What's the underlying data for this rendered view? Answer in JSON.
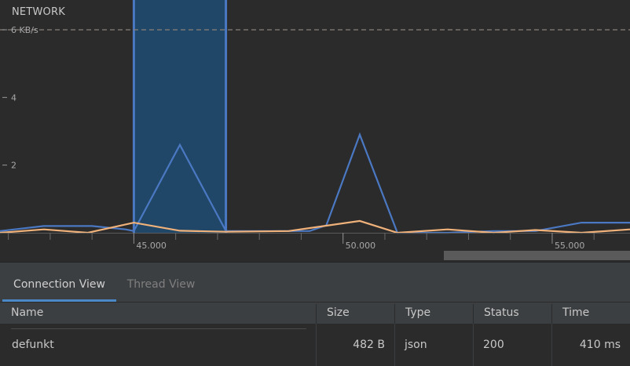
{
  "network": {
    "title": "NETWORK",
    "unit_label": "6 KB/s"
  },
  "chart_data": {
    "type": "line",
    "title": "NETWORK",
    "ylim": [
      0,
      6
    ],
    "y_ticks": [
      {
        "value": 2,
        "label": "2"
      },
      {
        "value": 4,
        "label": "4"
      },
      {
        "value": 6,
        "label": "6 KB/s"
      }
    ],
    "x_ticks": [
      {
        "value": 45,
        "label": "45.000"
      },
      {
        "value": 50,
        "label": "50.000"
      },
      {
        "value": 55,
        "label": "55.000"
      }
    ],
    "xlim": [
      41.8,
      56.86
    ],
    "threshold": 6,
    "selection": [
      45,
      47.2
    ],
    "series": [
      {
        "color": "#4a78c2",
        "x": [
          41.8,
          42.85,
          44.0,
          44.8,
          45.0,
          46.1,
          47.2,
          48.5,
          49.2,
          49.6,
          50.4,
          51.3,
          52.5,
          53.6,
          54.6,
          55.7,
          56.86
        ],
        "y": [
          0.05,
          0.2,
          0.2,
          0.1,
          0.05,
          2.6,
          0.05,
          0.05,
          0.05,
          0.22,
          2.9,
          0.0,
          0.0,
          0.05,
          0.05,
          0.3,
          0.3
        ]
      },
      {
        "color": "#f0b27a",
        "x": [
          41.8,
          42.85,
          43.9,
          45.0,
          46.1,
          47.2,
          48.7,
          50.4,
          51.3,
          52.5,
          53.6,
          54.6,
          55.7,
          56.86
        ],
        "y": [
          0.0,
          0.1,
          0.0,
          0.3,
          0.06,
          0.03,
          0.05,
          0.35,
          0.0,
          0.1,
          0.0,
          0.08,
          0.0,
          0.1
        ]
      }
    ]
  },
  "tabs": {
    "connection_label": "Connection View",
    "thread_label": "Thread View"
  },
  "table": {
    "headers": {
      "name": "Name",
      "size": "Size",
      "type": "Type",
      "status": "Status",
      "time": "Time"
    },
    "rows": [
      {
        "name": "defunkt",
        "size": "482 B",
        "type": "json",
        "status": "200",
        "time": "410 ms"
      }
    ]
  },
  "colors": {
    "background": "#2b2b2b",
    "selection_fill": "#1f4a6e",
    "selection_border": "#4a78c2",
    "threshold_line": "#8a7f7a"
  }
}
